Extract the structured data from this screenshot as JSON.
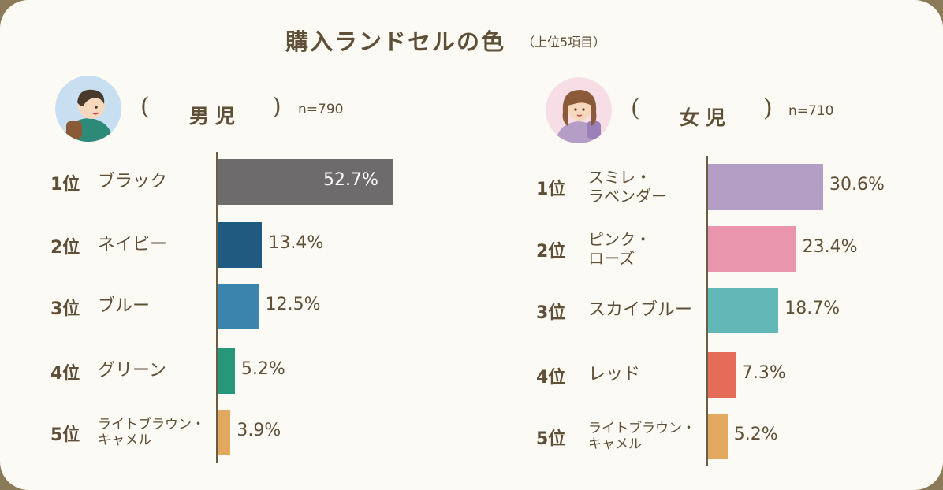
{
  "title": "購入ランドセルの色",
  "subtitle": "（上位5項目）",
  "chart_data": [
    {
      "type": "bar",
      "orientation": "horizontal",
      "group": "男児",
      "n": "n=790",
      "ranks": [
        "1位",
        "2位",
        "3位",
        "4位",
        "5位"
      ],
      "categories": [
        "ブラック",
        "ネイビー",
        "ブルー",
        "グリーン",
        "ライトブラウン・\nキャメル"
      ],
      "values": [
        52.7,
        13.4,
        12.5,
        5.2,
        3.9
      ],
      "value_labels": [
        "52.7%",
        "13.4%",
        "12.5%",
        "5.2%",
        "3.9%"
      ],
      "colors": [
        "#6e6b6d",
        "#1f5a80",
        "#3b84ad",
        "#26977a",
        "#e3a860"
      ],
      "unit": "%"
    },
    {
      "type": "bar",
      "orientation": "horizontal",
      "group": "女児",
      "n": "n=710",
      "ranks": [
        "1位",
        "2位",
        "3位",
        "4位",
        "5位"
      ],
      "categories": [
        "スミレ・\nラベンダー",
        "ピンク・\nローズ",
        "スカイブルー",
        "レッド",
        "ライトブラウン・\nキャメル"
      ],
      "values": [
        30.6,
        23.4,
        18.7,
        7.3,
        5.2
      ],
      "value_labels": [
        "30.6%",
        "23.4%",
        "18.7%",
        "7.3%",
        "5.2%"
      ],
      "colors": [
        "#b49ec6",
        "#e995ae",
        "#62b8b7",
        "#e46c58",
        "#e3a860"
      ],
      "unit": "%"
    }
  ],
  "icons": {
    "boy_avatar": "boy-avatar-icon",
    "girl_avatar": "girl-avatar-icon"
  },
  "colors": {
    "background": "#fcfaf4",
    "frame": "#8a7a58",
    "text": "#5f4f36"
  }
}
